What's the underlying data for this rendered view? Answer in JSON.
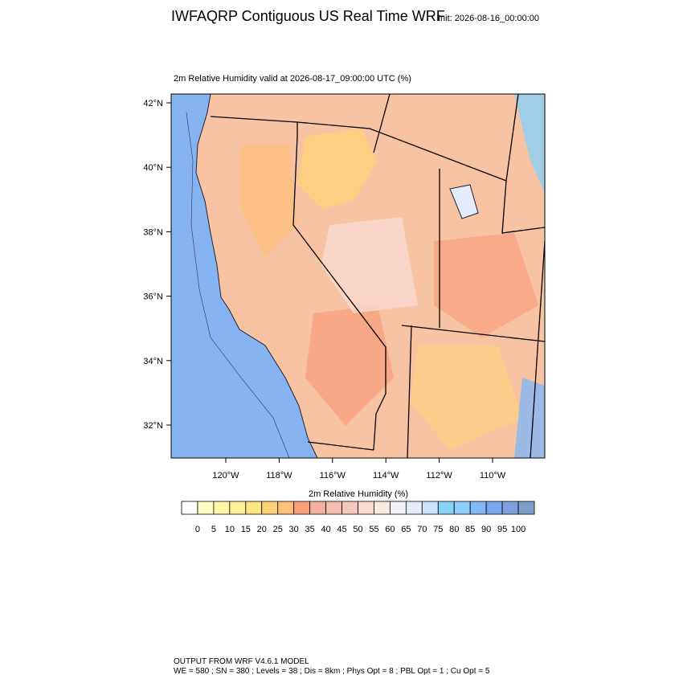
{
  "header": {
    "title": "IWFAQRP Contiguous US Real Time WRF",
    "init": "Init: 2026-08-16_00:00:00"
  },
  "map": {
    "subtitle": "2m Relative Humidity valid at 2026-08-17_09:00:00 UTC   (%)",
    "lat_labels": [
      "42°N",
      "40°N",
      "38°N",
      "36°N",
      "34°N",
      "32°N"
    ],
    "lon_labels": [
      "120°W",
      "118°W",
      "116°W",
      "114°W",
      "112°W",
      "110°W"
    ]
  },
  "colorbar": {
    "title": "2m Relative Humidity  (%)",
    "labels": [
      "0",
      "5",
      "10",
      "15",
      "20",
      "25",
      "30",
      "35",
      "40",
      "45",
      "50",
      "55",
      "60",
      "65",
      "70",
      "75",
      "80",
      "85",
      "90",
      "95",
      "100"
    ],
    "colors": [
      "#ffffff",
      "#ffffc4",
      "#fff6a8",
      "#fff09a",
      "#ffe485",
      "#ffd27a",
      "#ffc07a",
      "#fa9f7e",
      "#f3b0a0",
      "#f4bcae",
      "#f6c8bb",
      "#f8dacf",
      "#fbe9e4",
      "#f5f1f8",
      "#e4ecfb",
      "#cde3fb",
      "#88d4f7",
      "#8ccff9",
      "#84b8f6",
      "#7aa6ec",
      "#7c9fdf",
      "#7a9fca"
    ]
  },
  "footer": {
    "line1": "OUTPUT FROM WRF V4.6.1 MODEL",
    "line2": "WE = 580 ; SN = 380 ; Levels = 38 ; Dis = 8km ; Phys Opt = 8 ; PBL Opt = 1 ; Cu Opt = 5"
  }
}
